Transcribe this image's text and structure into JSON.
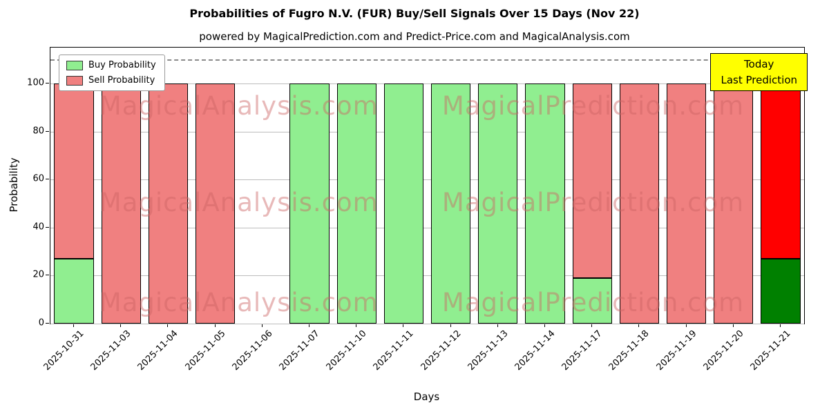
{
  "chart_data": {
    "type": "bar",
    "title": "Probabilities of Fugro N.V. (FUR) Buy/Sell Signals Over 15 Days (Nov 22)",
    "subtitle": "powered by MagicalPrediction.com and Predict-Price.com and MagicalAnalysis.com",
    "xlabel": "Days",
    "ylabel": "Probability",
    "ylim": [
      0,
      115
    ],
    "yticks": [
      0,
      20,
      40,
      60,
      80,
      100
    ],
    "dashed_line_y": 110,
    "grid": "horizontal",
    "legend_position": "upper-left",
    "categories": [
      "2025-10-31",
      "2025-11-03",
      "2025-11-04",
      "2025-11-05",
      "2025-11-06",
      "2025-11-07",
      "2025-11-10",
      "2025-11-11",
      "2025-11-12",
      "2025-11-13",
      "2025-11-14",
      "2025-11-17",
      "2025-11-18",
      "2025-11-19",
      "2025-11-20",
      "2025-11-21"
    ],
    "series": [
      {
        "name": "Buy Probability",
        "color": "#90EE90",
        "values": [
          27,
          0,
          0,
          0,
          null,
          100,
          100,
          100,
          100,
          100,
          100,
          19,
          0,
          0,
          0,
          27
        ]
      },
      {
        "name": "Sell Probability",
        "color": "#F08080",
        "values": [
          73,
          100,
          100,
          100,
          null,
          0,
          0,
          0,
          0,
          0,
          0,
          81,
          100,
          100,
          100,
          73
        ]
      }
    ],
    "today_index": 15,
    "today_colors": {
      "buy": "#008000",
      "sell": "#FF0000"
    },
    "legend": [
      {
        "label": "Buy Probability",
        "color": "#90EE90"
      },
      {
        "label": "Sell Probability",
        "color": "#F08080"
      }
    ],
    "annotation": {
      "lines": [
        "Today",
        "Last Prediction"
      ],
      "bg": "#FFFF00"
    },
    "watermarks": [
      "MagicalAnalysis.com",
      "MagicalPrediction.com"
    ]
  }
}
